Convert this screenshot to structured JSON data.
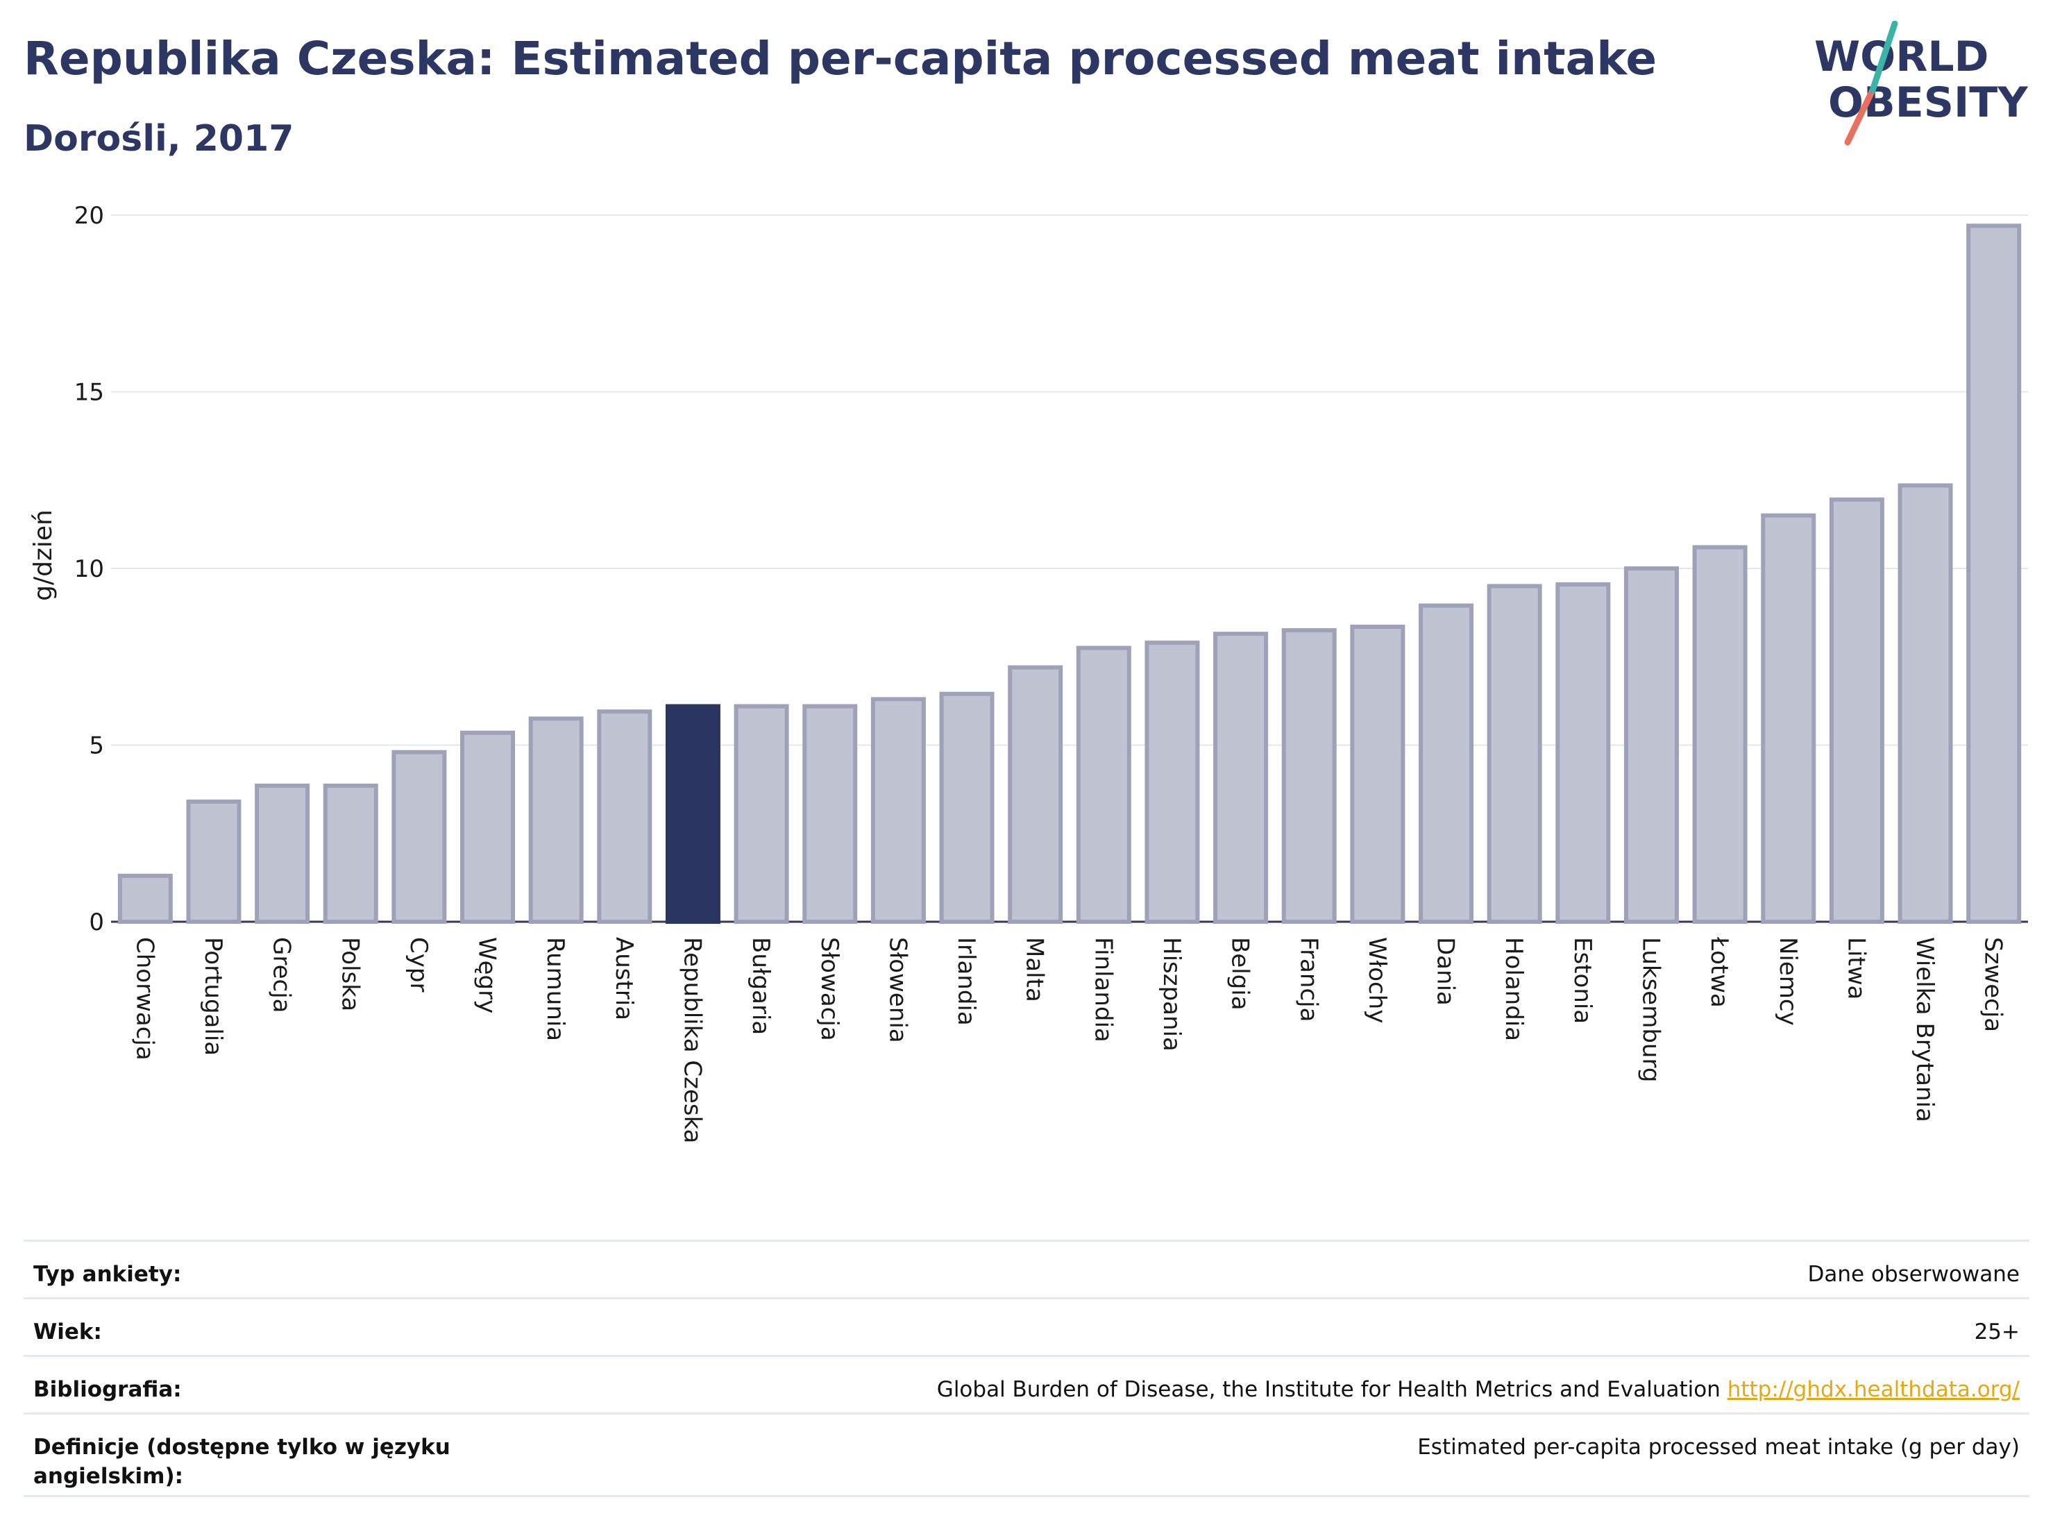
{
  "header": {
    "title": "Republika Czeska: Estimated per-capita processed meat intake",
    "subtitle": "Dorośli, 2017",
    "logo_line1": "WORLD",
    "logo_line2": "OBESITY"
  },
  "colors": {
    "bar": "#c0c3d1",
    "bar_border": "#9da2b8",
    "highlight": "#2b3561",
    "grid": "#e5e7ef",
    "title": "#2d3763",
    "link": "#e6a812"
  },
  "chart_data": {
    "type": "bar",
    "title": "Republika Czeska: Estimated per-capita processed meat intake",
    "subtitle": "Dorośli, 2017",
    "xlabel": "",
    "ylabel": "g/dzień",
    "ylim": [
      0,
      20
    ],
    "yticks": [
      0,
      5,
      10,
      15,
      20
    ],
    "grid": true,
    "highlight": "Republika Czeska",
    "categories": [
      "Chorwacja",
      "Portugalia",
      "Grecja",
      "Polska",
      "Cypr",
      "Węgry",
      "Rumunia",
      "Austria",
      "Republika Czeska",
      "Bułgaria",
      "Słowacja",
      "Słowenia",
      "Irlandia",
      "Malta",
      "Finlandia",
      "Hiszpania",
      "Belgia",
      "Francja",
      "Włochy",
      "Dania",
      "Holandia",
      "Estonia",
      "Luksemburg",
      "Łotwa",
      "Niemcy",
      "Litwa",
      "Wielka Brytania",
      "Szwecja"
    ],
    "values": [
      1.3,
      3.4,
      3.85,
      3.85,
      4.8,
      5.35,
      5.75,
      5.95,
      6.1,
      6.1,
      6.1,
      6.3,
      6.45,
      7.2,
      7.75,
      7.9,
      8.15,
      8.25,
      8.35,
      8.95,
      9.5,
      9.55,
      10.0,
      10.6,
      11.5,
      11.95,
      12.35,
      19.7
    ]
  },
  "info": {
    "survey_label": "Typ ankiety:",
    "survey_value": "Dane obserwowane",
    "age_label": "Wiek:",
    "age_value": "25+",
    "bib_label": "Bibliografia:",
    "bib_value": "Global Burden of Disease, the Institute for Health Metrics and Evaluation",
    "bib_link": "http://ghdx.healthdata.org/",
    "def_label": "Definicje (dostępne tylko w języku angielskim):",
    "def_value": "Estimated per-capita processed meat intake (g per day)"
  }
}
